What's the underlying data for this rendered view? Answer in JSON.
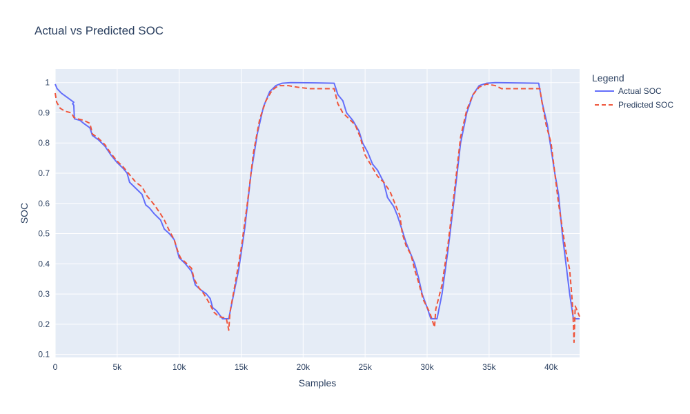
{
  "chart_data": {
    "type": "line",
    "title": "Actual vs Predicted SOC",
    "xlabel": "Samples",
    "ylabel": "SOC",
    "xlim": [
      0,
      42300
    ],
    "ylim": [
      0.09,
      1.045
    ],
    "grid": true,
    "legend_placement": "top-right",
    "legend_title": "Legend",
    "x_ticks": [
      0,
      5000,
      10000,
      15000,
      20000,
      25000,
      30000,
      35000,
      40000
    ],
    "x_tick_labels": [
      "0",
      "5k",
      "10k",
      "15k",
      "20k",
      "25k",
      "30k",
      "35k",
      "40k"
    ],
    "y_ticks": [
      0.1,
      0.2,
      0.3,
      0.4,
      0.5,
      0.6,
      0.7,
      0.8,
      0.9,
      1
    ],
    "y_tick_labels": [
      "0.1",
      "0.2",
      "0.3",
      "0.4",
      "0.5",
      "0.6",
      "0.7",
      "0.8",
      "0.9",
      "1"
    ],
    "series": [
      {
        "name": "Actual SOC",
        "color": "#636efa",
        "dash": "solid",
        "points": [
          [
            0,
            0.995
          ],
          [
            150,
            0.98
          ],
          [
            500,
            0.965
          ],
          [
            1000,
            0.95
          ],
          [
            1500,
            0.935
          ],
          [
            1400,
            0.93
          ],
          [
            1500,
            0.925
          ],
          [
            1550,
            0.88
          ],
          [
            2000,
            0.875
          ],
          [
            2300,
            0.865
          ],
          [
            2800,
            0.85
          ],
          [
            3000,
            0.825
          ],
          [
            3500,
            0.81
          ],
          [
            4000,
            0.79
          ],
          [
            4500,
            0.76
          ],
          [
            5000,
            0.735
          ],
          [
            5500,
            0.715
          ],
          [
            5800,
            0.7
          ],
          [
            6000,
            0.67
          ],
          [
            6500,
            0.65
          ],
          [
            7000,
            0.63
          ],
          [
            7300,
            0.595
          ],
          [
            7600,
            0.585
          ],
          [
            8000,
            0.565
          ],
          [
            8500,
            0.545
          ],
          [
            8800,
            0.515
          ],
          [
            9200,
            0.5
          ],
          [
            9600,
            0.48
          ],
          [
            10000,
            0.42
          ],
          [
            10500,
            0.4
          ],
          [
            11000,
            0.375
          ],
          [
            11300,
            0.33
          ],
          [
            11700,
            0.315
          ],
          [
            12200,
            0.3
          ],
          [
            12500,
            0.285
          ],
          [
            12700,
            0.255
          ],
          [
            13000,
            0.245
          ],
          [
            13500,
            0.218
          ],
          [
            14000,
            0.218
          ],
          [
            14300,
            0.28
          ],
          [
            14800,
            0.38
          ],
          [
            15300,
            0.52
          ],
          [
            15800,
            0.7
          ],
          [
            16300,
            0.83
          ],
          [
            16800,
            0.92
          ],
          [
            17300,
            0.97
          ],
          [
            17800,
            0.99
          ],
          [
            18300,
            0.998
          ],
          [
            19000,
            1.0
          ],
          [
            21000,
            0.999
          ],
          [
            22500,
            0.998
          ],
          [
            22800,
            0.96
          ],
          [
            23200,
            0.94
          ],
          [
            23500,
            0.9
          ],
          [
            24000,
            0.875
          ],
          [
            24500,
            0.84
          ],
          [
            24800,
            0.8
          ],
          [
            25200,
            0.77
          ],
          [
            25600,
            0.73
          ],
          [
            26000,
            0.71
          ],
          [
            26500,
            0.67
          ],
          [
            26800,
            0.62
          ],
          [
            27300,
            0.59
          ],
          [
            27600,
            0.56
          ],
          [
            28000,
            0.51
          ],
          [
            28300,
            0.47
          ],
          [
            28700,
            0.43
          ],
          [
            29000,
            0.4
          ],
          [
            29300,
            0.355
          ],
          [
            29600,
            0.3
          ],
          [
            30000,
            0.255
          ],
          [
            30300,
            0.218
          ],
          [
            30800,
            0.218
          ],
          [
            31200,
            0.3
          ],
          [
            31700,
            0.45
          ],
          [
            32200,
            0.62
          ],
          [
            32700,
            0.8
          ],
          [
            33200,
            0.9
          ],
          [
            33700,
            0.96
          ],
          [
            34200,
            0.99
          ],
          [
            34800,
            0.998
          ],
          [
            35500,
            1.0
          ],
          [
            37000,
            0.999
          ],
          [
            39000,
            0.998
          ],
          [
            39300,
            0.93
          ],
          [
            39700,
            0.86
          ],
          [
            40000,
            0.78
          ],
          [
            40300,
            0.7
          ],
          [
            40600,
            0.63
          ],
          [
            40900,
            0.5
          ],
          [
            41200,
            0.4
          ],
          [
            41500,
            0.3
          ],
          [
            41800,
            0.218
          ],
          [
            42300,
            0.218
          ]
        ]
      },
      {
        "name": "Predicted SOC",
        "color": "#ef553b",
        "dash": "dashed",
        "points": [
          [
            0,
            0.965
          ],
          [
            120,
            0.935
          ],
          [
            400,
            0.915
          ],
          [
            800,
            0.905
          ],
          [
            1300,
            0.9
          ],
          [
            1500,
            0.885
          ],
          [
            1800,
            0.88
          ],
          [
            2300,
            0.875
          ],
          [
            2800,
            0.865
          ],
          [
            3000,
            0.83
          ],
          [
            3500,
            0.815
          ],
          [
            4000,
            0.795
          ],
          [
            4500,
            0.765
          ],
          [
            5000,
            0.74
          ],
          [
            5500,
            0.72
          ],
          [
            6000,
            0.695
          ],
          [
            6500,
            0.67
          ],
          [
            7000,
            0.655
          ],
          [
            7400,
            0.625
          ],
          [
            8000,
            0.595
          ],
          [
            8500,
            0.565
          ],
          [
            8800,
            0.545
          ],
          [
            9200,
            0.51
          ],
          [
            9600,
            0.48
          ],
          [
            9900,
            0.44
          ],
          [
            10100,
            0.42
          ],
          [
            10500,
            0.405
          ],
          [
            11000,
            0.385
          ],
          [
            11200,
            0.35
          ],
          [
            11600,
            0.32
          ],
          [
            12000,
            0.3
          ],
          [
            12500,
            0.265
          ],
          [
            12800,
            0.24
          ],
          [
            13200,
            0.225
          ],
          [
            13800,
            0.22
          ],
          [
            14000,
            0.18
          ],
          [
            14100,
            0.24
          ],
          [
            14500,
            0.33
          ],
          [
            15000,
            0.45
          ],
          [
            15500,
            0.6
          ],
          [
            16000,
            0.77
          ],
          [
            16500,
            0.88
          ],
          [
            17000,
            0.94
          ],
          [
            17500,
            0.975
          ],
          [
            18000,
            0.99
          ],
          [
            18800,
            0.99
          ],
          [
            19500,
            0.985
          ],
          [
            20500,
            0.98
          ],
          [
            22500,
            0.98
          ],
          [
            22800,
            0.93
          ],
          [
            23200,
            0.9
          ],
          [
            23700,
            0.88
          ],
          [
            24200,
            0.86
          ],
          [
            24600,
            0.82
          ],
          [
            25000,
            0.76
          ],
          [
            25500,
            0.725
          ],
          [
            26000,
            0.69
          ],
          [
            26500,
            0.67
          ],
          [
            27000,
            0.64
          ],
          [
            27400,
            0.6
          ],
          [
            27800,
            0.56
          ],
          [
            28000,
            0.5
          ],
          [
            28300,
            0.46
          ],
          [
            28700,
            0.43
          ],
          [
            29000,
            0.38
          ],
          [
            29300,
            0.34
          ],
          [
            29700,
            0.28
          ],
          [
            30200,
            0.24
          ],
          [
            30600,
            0.19
          ],
          [
            30700,
            0.25
          ],
          [
            31200,
            0.33
          ],
          [
            31700,
            0.47
          ],
          [
            32200,
            0.64
          ],
          [
            32700,
            0.82
          ],
          [
            33200,
            0.91
          ],
          [
            33700,
            0.96
          ],
          [
            34200,
            0.985
          ],
          [
            34800,
            0.995
          ],
          [
            35500,
            0.99
          ],
          [
            36000,
            0.98
          ],
          [
            38500,
            0.98
          ],
          [
            39100,
            0.98
          ],
          [
            39200,
            0.95
          ],
          [
            39600,
            0.86
          ],
          [
            40000,
            0.8
          ],
          [
            40300,
            0.7
          ],
          [
            40600,
            0.6
          ],
          [
            40900,
            0.52
          ],
          [
            41200,
            0.44
          ],
          [
            41500,
            0.38
          ],
          [
            41700,
            0.28
          ],
          [
            41800,
            0.2
          ],
          [
            41850,
            0.14
          ],
          [
            41950,
            0.26
          ],
          [
            42300,
            0.225
          ]
        ]
      }
    ]
  }
}
